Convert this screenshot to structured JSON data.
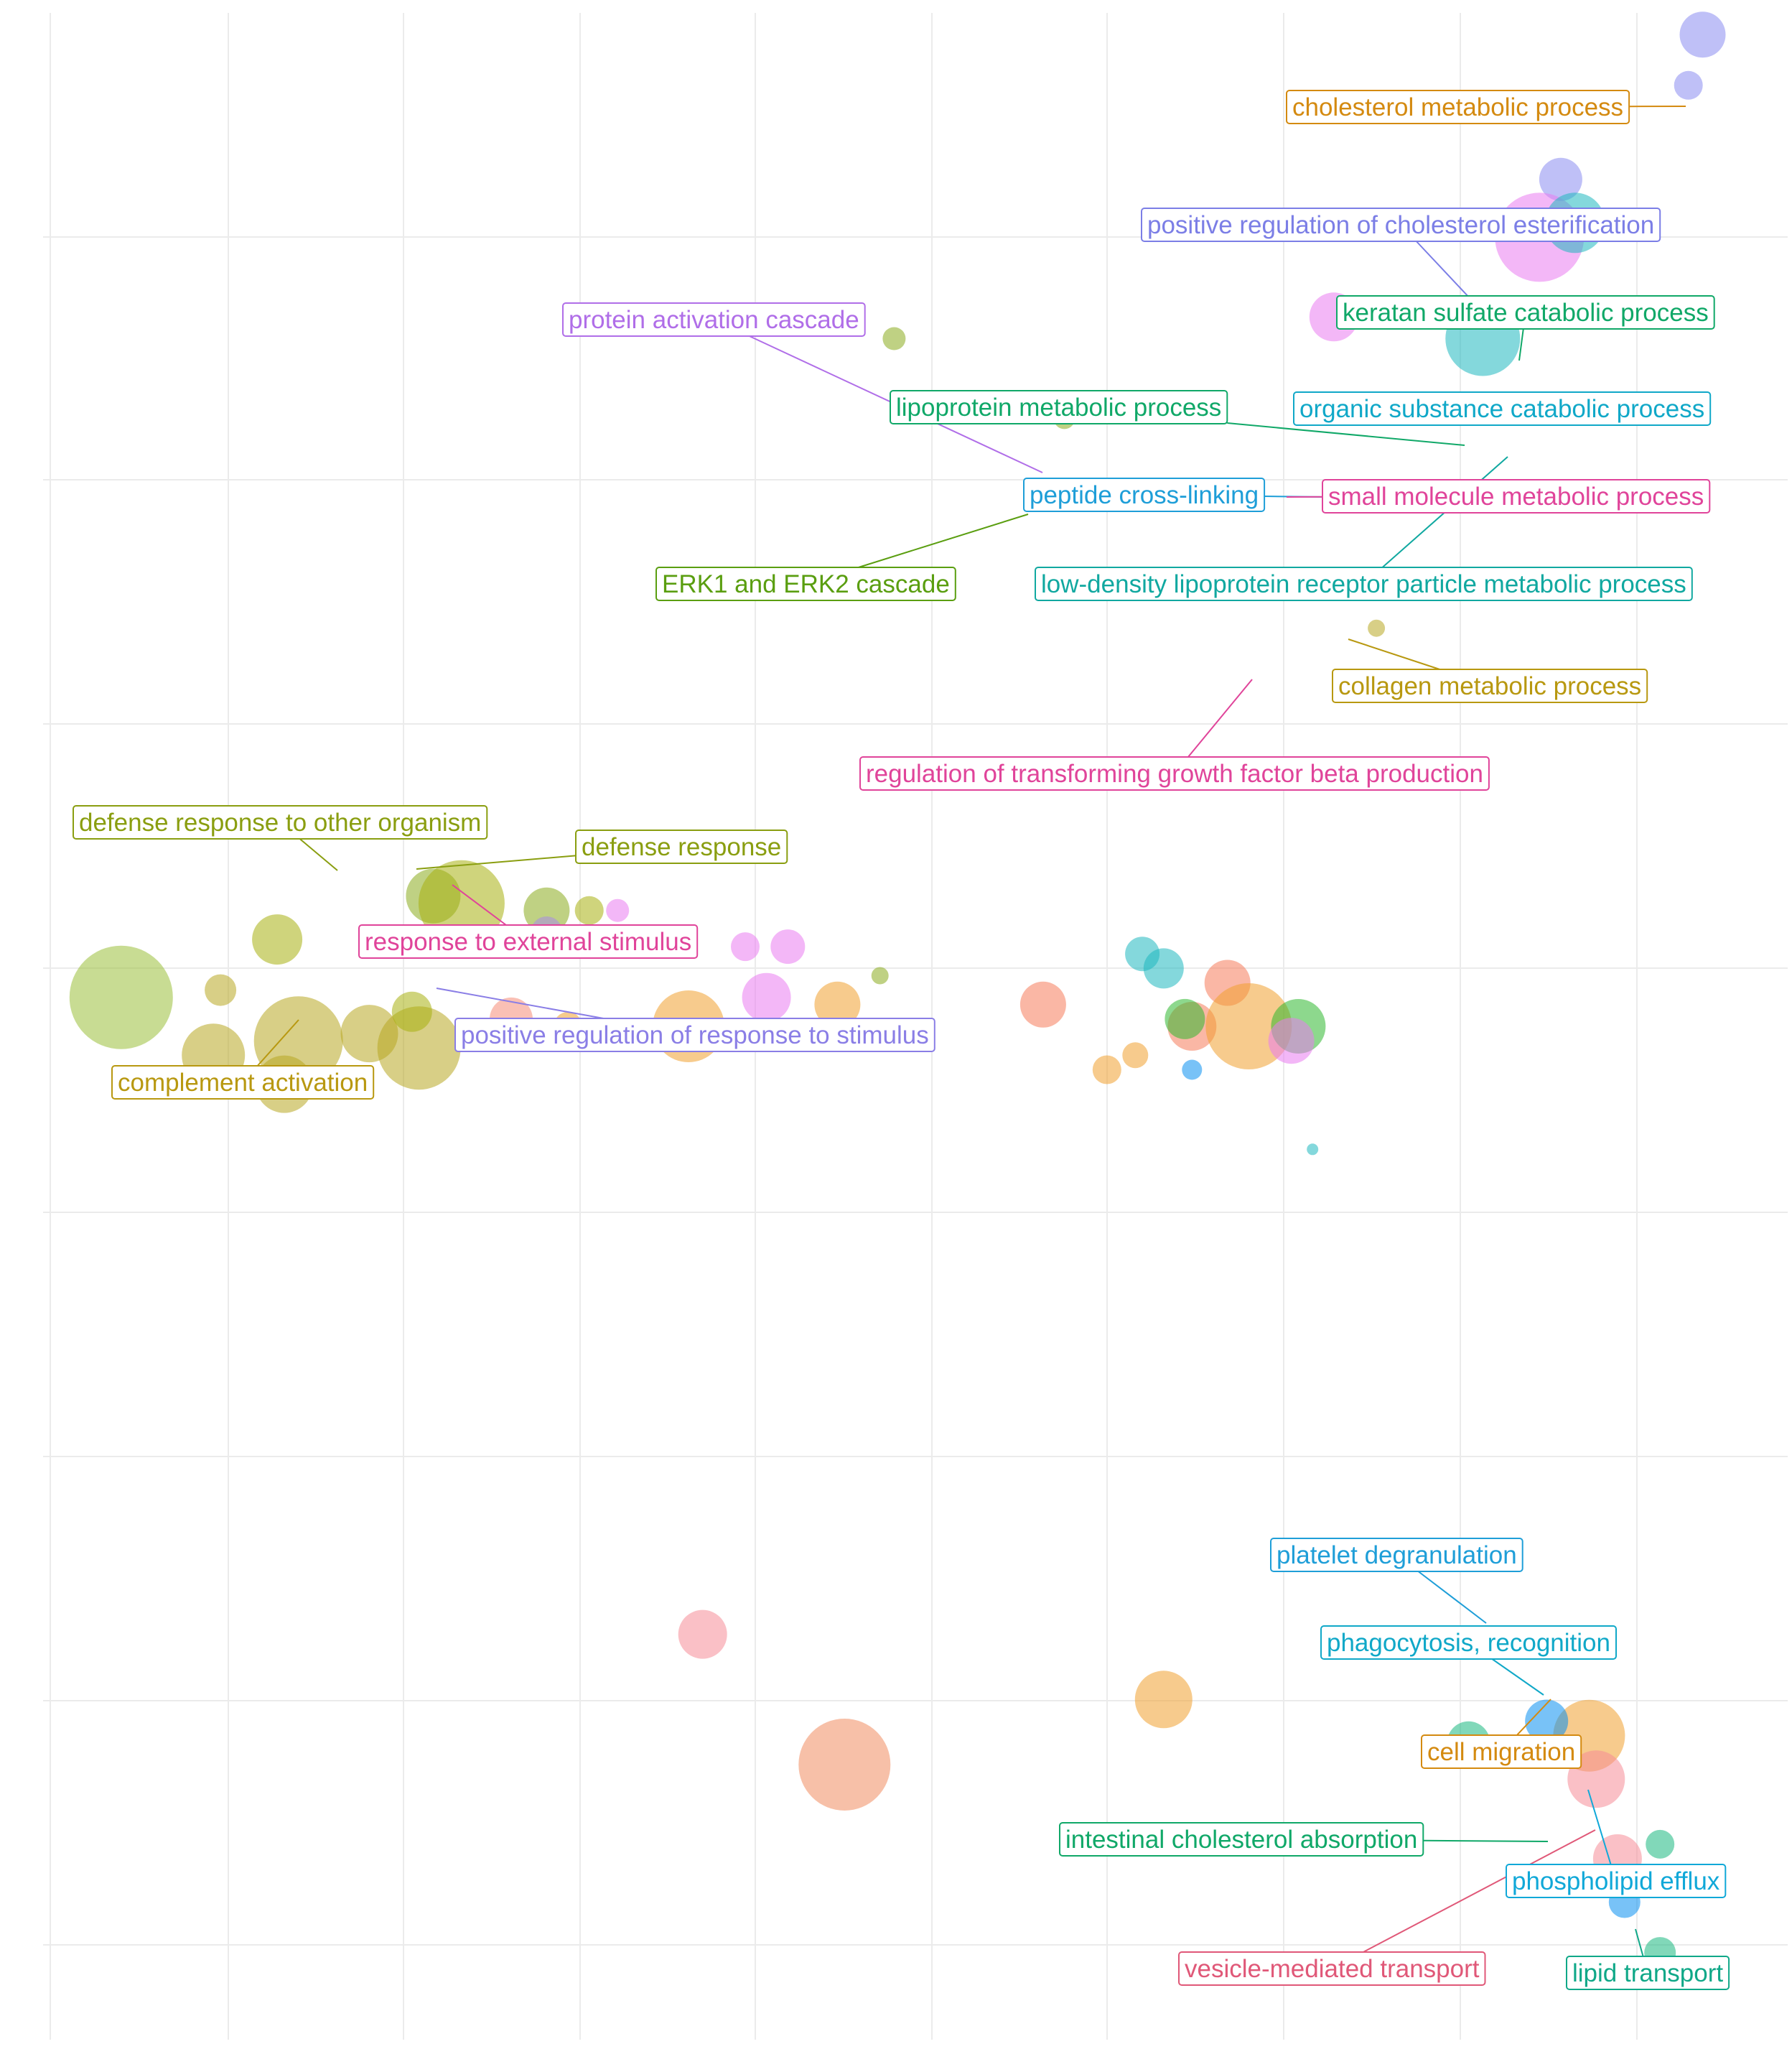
{
  "chart_data": {
    "type": "scatter",
    "title": "",
    "xlabel": "",
    "ylabel": "",
    "xlim": [
      0,
      24.5
    ],
    "ylim": [
      0,
      28
    ],
    "grid": true,
    "legend": "none",
    "points": [
      {
        "x": 1.0,
        "y": 14.4,
        "r": 72,
        "color": "#9bbf3a"
      },
      {
        "x": 2.4,
        "y": 14.5,
        "r": 22,
        "color": "#b8a823"
      },
      {
        "x": 2.3,
        "y": 13.6,
        "r": 44,
        "color": "#b8a823"
      },
      {
        "x": 3.5,
        "y": 13.8,
        "r": 62,
        "color": "#b8a823"
      },
      {
        "x": 4.5,
        "y": 13.9,
        "r": 40,
        "color": "#b8a823"
      },
      {
        "x": 5.2,
        "y": 13.7,
        "r": 58,
        "color": "#b8a823"
      },
      {
        "x": 3.3,
        "y": 13.2,
        "r": 40,
        "color": "#b8a823"
      },
      {
        "x": 3.2,
        "y": 15.2,
        "r": 35,
        "color": "#a8b010"
      },
      {
        "x": 5.1,
        "y": 14.2,
        "r": 28,
        "color": "#a8b010"
      },
      {
        "x": 5.4,
        "y": 15.8,
        "r": 38,
        "color": "#8aab1e"
      },
      {
        "x": 5.8,
        "y": 15.7,
        "r": 60,
        "color": "#a8b010"
      },
      {
        "x": 6.5,
        "y": 14.1,
        "r": 30,
        "color": "#f58c78"
      },
      {
        "x": 7.0,
        "y": 15.6,
        "r": 32,
        "color": "#8aab1e"
      },
      {
        "x": 7.0,
        "y": 15.3,
        "r": 22,
        "color": "#a88de8"
      },
      {
        "x": 7.6,
        "y": 15.6,
        "r": 20,
        "color": "#a8b010"
      },
      {
        "x": 7.3,
        "y": 14.0,
        "r": 20,
        "color": "#f0a030"
      },
      {
        "x": 8.0,
        "y": 15.6,
        "r": 16,
        "color": "#ea7cf0"
      },
      {
        "x": 9.0,
        "y": 14.0,
        "r": 50,
        "color": "#f0a030"
      },
      {
        "x": 9.8,
        "y": 15.1,
        "r": 20,
        "color": "#ea7cf0"
      },
      {
        "x": 10.4,
        "y": 15.1,
        "r": 24,
        "color": "#ea7cf0"
      },
      {
        "x": 10.1,
        "y": 14.4,
        "r": 34,
        "color": "#ea7cf0"
      },
      {
        "x": 11.1,
        "y": 14.3,
        "r": 32,
        "color": "#f0a030"
      },
      {
        "x": 11.7,
        "y": 14.7,
        "r": 12,
        "color": "#8aab1e"
      },
      {
        "x": 14.0,
        "y": 14.3,
        "r": 32,
        "color": "#f57c5b"
      },
      {
        "x": 15.4,
        "y": 15.0,
        "r": 24,
        "color": "#1fb8c0"
      },
      {
        "x": 15.7,
        "y": 14.8,
        "r": 28,
        "color": "#1fb8c0"
      },
      {
        "x": 16.6,
        "y": 14.6,
        "r": 32,
        "color": "#f57c5b"
      },
      {
        "x": 16.1,
        "y": 14.0,
        "r": 34,
        "color": "#f57c5b"
      },
      {
        "x": 16.9,
        "y": 14.0,
        "r": 60,
        "color": "#f0a030"
      },
      {
        "x": 17.6,
        "y": 14.0,
        "r": 38,
        "color": "#2fb82f"
      },
      {
        "x": 17.5,
        "y": 13.8,
        "r": 32,
        "color": "#ea7cf0"
      },
      {
        "x": 16.0,
        "y": 14.1,
        "r": 28,
        "color": "#2fb82f"
      },
      {
        "x": 15.3,
        "y": 13.6,
        "r": 18,
        "color": "#f0a030"
      },
      {
        "x": 14.9,
        "y": 13.4,
        "r": 20,
        "color": "#f0a030"
      },
      {
        "x": 16.1,
        "y": 13.4,
        "r": 14,
        "color": "#0a90f0"
      },
      {
        "x": 17.8,
        "y": 12.3,
        "r": 8,
        "color": "#1fb8c0"
      },
      {
        "x": 23.3,
        "y": 27.7,
        "r": 32,
        "color": "#8a8cf0"
      },
      {
        "x": 23.1,
        "y": 27.0,
        "r": 20,
        "color": "#8a8cf0"
      },
      {
        "x": 21.3,
        "y": 25.7,
        "r": 30,
        "color": "#8a8cf0"
      },
      {
        "x": 21.0,
        "y": 24.9,
        "r": 62,
        "color": "#ea7cf0"
      },
      {
        "x": 21.5,
        "y": 25.1,
        "r": 42,
        "color": "#1fb8c0"
      },
      {
        "x": 20.2,
        "y": 23.5,
        "r": 52,
        "color": "#1fb8c0"
      },
      {
        "x": 18.1,
        "y": 23.8,
        "r": 34,
        "color": "#ea7cf0"
      },
      {
        "x": 11.9,
        "y": 23.5,
        "r": 16,
        "color": "#8aab1e"
      },
      {
        "x": 14.3,
        "y": 22.4,
        "r": 15,
        "color": "#8aab1e"
      },
      {
        "x": 18.7,
        "y": 19.5,
        "r": 12,
        "color": "#b8a823"
      },
      {
        "x": 9.2,
        "y": 5.6,
        "r": 34,
        "color": "#f58c98"
      },
      {
        "x": 15.7,
        "y": 4.7,
        "r": 40,
        "color": "#f0a030"
      },
      {
        "x": 11.2,
        "y": 3.8,
        "r": 64,
        "color": "#f08c60"
      },
      {
        "x": 21.7,
        "y": 4.2,
        "r": 50,
        "color": "#f0a030"
      },
      {
        "x": 21.1,
        "y": 4.4,
        "r": 30,
        "color": "#0a90f0"
      },
      {
        "x": 20.0,
        "y": 4.1,
        "r": 30,
        "color": "#19b87f"
      },
      {
        "x": 21.8,
        "y": 3.6,
        "r": 40,
        "color": "#f58c98"
      },
      {
        "x": 22.1,
        "y": 2.5,
        "r": 34,
        "color": "#f58c98"
      },
      {
        "x": 22.7,
        "y": 2.7,
        "r": 20,
        "color": "#19b87f"
      },
      {
        "x": 22.7,
        "y": 1.2,
        "r": 22,
        "color": "#19b87f"
      },
      {
        "x": 22.2,
        "y": 1.9,
        "r": 22,
        "color": "#0a90f0"
      }
    ],
    "labels": [
      {
        "text": "cholesterol metabolic process",
        "color": "#d48a10"
      },
      {
        "text": "positive regulation of cholesterol esterification",
        "color": "#7b7ee6"
      },
      {
        "text": "keratan sulfate catabolic process",
        "color": "#10a868"
      },
      {
        "text": "protein activation cascade",
        "color": "#b06ee8"
      },
      {
        "text": "lipoprotein metabolic process",
        "color": "#10a868"
      },
      {
        "text": "organic substance catabolic process",
        "color": "#10a8c8"
      },
      {
        "text": "peptide cross-linking",
        "color": "#1e9ed8"
      },
      {
        "text": "small molecule metabolic process",
        "color": "#e0449a"
      },
      {
        "text": "ERK1 and ERK2 cascade",
        "color": "#5a9e10"
      },
      {
        "text": "low-density lipoprotein receptor particle metabolic process",
        "color": "#10a8a0"
      },
      {
        "text": "collagen metabolic process",
        "color": "#b89810"
      },
      {
        "text": "regulation of transforming growth factor beta production",
        "color": "#e0449a"
      },
      {
        "text": "defense response to other organism",
        "color": "#8a9e10"
      },
      {
        "text": "defense response",
        "color": "#8a9e10"
      },
      {
        "text": "response to external stimulus",
        "color": "#e0449a"
      },
      {
        "text": "positive regulation of response to stimulus",
        "color": "#8a7ee6"
      },
      {
        "text": "complement activation",
        "color": "#b89810"
      },
      {
        "text": "platelet degranulation",
        "color": "#1e9ed8"
      },
      {
        "text": "phagocytosis, recognition",
        "color": "#10a8c8"
      },
      {
        "text": "cell migration",
        "color": "#d48a10"
      },
      {
        "text": "intestinal cholesterol absorption",
        "color": "#10a868"
      },
      {
        "text": "phospholipid efflux",
        "color": "#10a8d8"
      },
      {
        "text": "vesicle-mediated transport",
        "color": "#e05878"
      },
      {
        "text": "lipid transport",
        "color": "#10a888"
      }
    ]
  }
}
